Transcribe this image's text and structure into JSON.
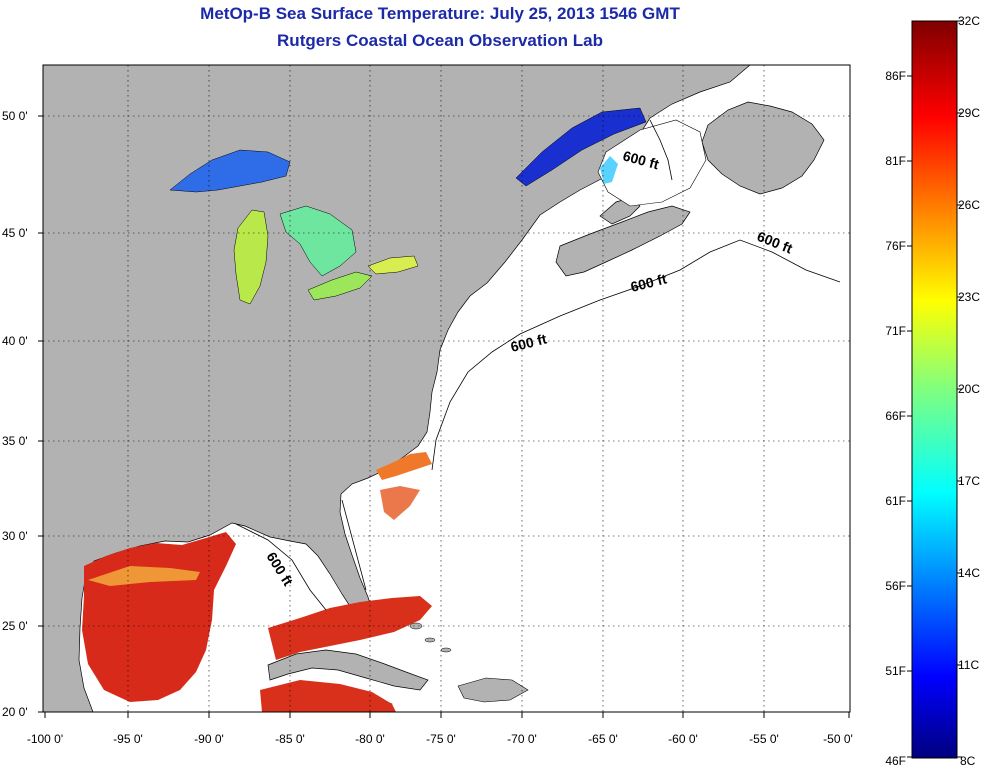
{
  "title": "MetOp-B Sea Surface Temperature:  July 25, 2013 1546 GMT",
  "subtitle": "Rutgers Coastal Ocean Observation Lab",
  "map": {
    "lon_range": [
      -100,
      -50
    ],
    "lat_range": [
      20,
      52.5
    ],
    "x_ticks": [
      "-100 0'",
      "-95 0'",
      "-90 0'",
      "-85 0'",
      "-80 0'",
      "-75 0'",
      "-70 0'",
      "-65 0'",
      "-60 0'",
      "-55 0'",
      "-50 0'"
    ],
    "y_ticks": [
      "50 0'",
      "45 0'",
      "40 0'",
      "35 0'",
      "30 0'",
      "25 0'",
      "20 0'"
    ],
    "isobath_labels": [
      "600 ft",
      "600 ft",
      "600 ft",
      "600 ft",
      "600 ft"
    ],
    "land_color": "#b2b2b2",
    "grid": true
  },
  "colorbar": {
    "celsius_labels": [
      "32C",
      "29C",
      "26C",
      "23C",
      "20C",
      "17C",
      "14C",
      "11C",
      "8C"
    ],
    "fahrenheit_labels": [
      "86F",
      "81F",
      "76F",
      "71F",
      "66F",
      "61F",
      "56F",
      "51F",
      "46F"
    ],
    "range_c": [
      8,
      32
    ],
    "colormap": "jet"
  }
}
